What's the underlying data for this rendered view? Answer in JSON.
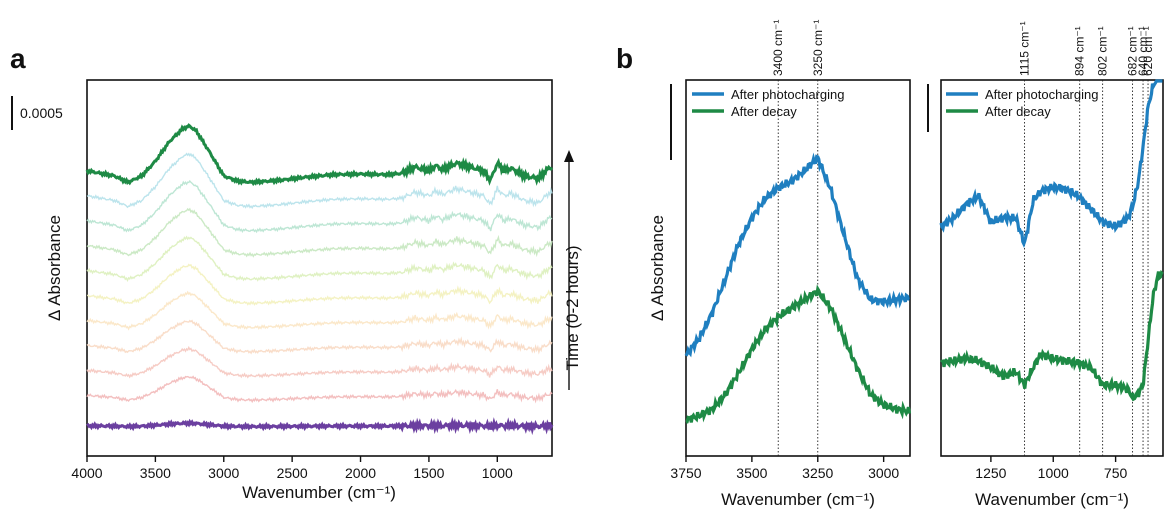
{
  "chart_data": [
    {
      "panel": "a",
      "type": "line",
      "xlabel": "Wavenumber (cm⁻¹)",
      "ylabel": "Δ Absorbance",
      "xlim": [
        4000,
        600
      ],
      "xticks": [
        "4000",
        "3500",
        "3000",
        "2500",
        "2000",
        "1500",
        "1000"
      ],
      "xtick_values": [
        4000,
        3500,
        3000,
        2500,
        2000,
        1500,
        1000
      ],
      "scale_bar_label": "0.0005",
      "arrow_label": "Time (0-2 hours)",
      "y_ticks_shown": false,
      "spectra_count": 11,
      "spectrum_profile": {
        "x": [
          4000,
          3800,
          3700,
          3600,
          3500,
          3400,
          3300,
          3250,
          3200,
          3100,
          3000,
          2900,
          2800,
          2600,
          2400,
          2200,
          2000,
          1800,
          1700,
          1600,
          1500,
          1450,
          1400,
          1300,
          1200,
          1100,
          1050,
          1000,
          950,
          900,
          800,
          700,
          620
        ],
        "y": [
          0.3,
          0.22,
          0.12,
          0.22,
          0.45,
          0.75,
          0.96,
          1.0,
          0.92,
          0.58,
          0.22,
          0.14,
          0.12,
          0.15,
          0.2,
          0.24,
          0.25,
          0.24,
          0.26,
          0.36,
          0.3,
          0.38,
          0.32,
          0.42,
          0.36,
          0.3,
          0.15,
          0.42,
          0.3,
          0.34,
          0.22,
          0.18,
          0.35
        ]
      },
      "series_colors": [
        "#6b3fa0",
        "#f2b8b8",
        "#f5c7bf",
        "#f8d9c3",
        "#fbe6c4",
        "#f3f1bd",
        "#dcefbb",
        "#c5e7bf",
        "#b6e3cf",
        "#b5e1ea",
        "#1e8a45"
      ]
    },
    {
      "panel": "b",
      "type": "line",
      "ylabel": "Δ Absorbance",
      "xlabel": "Wavenumber (cm⁻¹)",
      "legend": [
        "After photocharging",
        "After decay"
      ],
      "legend_position": "top-left",
      "series_colors": [
        "#1f7fc0",
        "#1e8a45"
      ],
      "left_subplot": {
        "xlim": [
          3750,
          2900
        ],
        "xticks": [
          "3750",
          "3500",
          "3250",
          "3000"
        ],
        "xtick_values": [
          3750,
          3500,
          3250,
          3000
        ],
        "peak_lines": [
          3400,
          3250
        ],
        "peak_labels": [
          "3400 cm⁻¹",
          "3250 cm⁻¹"
        ],
        "series": [
          {
            "name": "After photocharging",
            "x": [
              3750,
              3700,
              3650,
              3600,
              3550,
              3500,
              3450,
              3400,
              3350,
              3300,
              3250,
              3200,
              3150,
              3100,
              3050,
              3000,
              2950,
              2900
            ],
            "y": [
              0.3,
              0.38,
              0.5,
              0.66,
              0.82,
              0.94,
              1.03,
              1.08,
              1.11,
              1.16,
              1.22,
              1.07,
              0.86,
              0.66,
              0.56,
              0.55,
              0.56,
              0.57
            ]
          },
          {
            "name": "After decay",
            "x": [
              3750,
              3700,
              3650,
              3600,
              3550,
              3500,
              3450,
              3400,
              3350,
              3300,
              3250,
              3200,
              3150,
              3100,
              3050,
              3000,
              2950,
              2900
            ],
            "y": [
              0.0,
              0.02,
              0.05,
              0.12,
              0.22,
              0.33,
              0.42,
              0.48,
              0.52,
              0.56,
              0.6,
              0.52,
              0.38,
              0.24,
              0.12,
              0.07,
              0.05,
              0.04
            ]
          }
        ]
      },
      "right_subplot": {
        "xlim": [
          1450,
          560
        ],
        "xticks": [
          "1250",
          "1000",
          "750"
        ],
        "xtick_values": [
          1250,
          1000,
          750
        ],
        "peak_lines": [
          1115,
          894,
          802,
          682,
          640,
          620
        ],
        "peak_labels": [
          "1115 cm⁻¹",
          "894 cm⁻¹",
          "802 cm⁻¹",
          "682 cm⁻¹",
          "640 cm⁻¹",
          "620 cm⁻¹"
        ],
        "series": [
          {
            "name": "After photocharging",
            "x": [
              1450,
              1400,
              1350,
              1300,
              1250,
              1200,
              1150,
              1115,
              1080,
              1050,
              1000,
              950,
              900,
              850,
              800,
              750,
              700,
              680,
              660,
              640,
              620,
              600,
              580
            ],
            "y": [
              0.72,
              0.76,
              0.82,
              0.86,
              0.74,
              0.76,
              0.76,
              0.64,
              0.84,
              0.88,
              0.9,
              0.89,
              0.86,
              0.8,
              0.74,
              0.72,
              0.76,
              0.82,
              0.92,
              1.08,
              1.26,
              1.36,
              1.4
            ]
          },
          {
            "name": "After decay",
            "x": [
              1450,
              1400,
              1350,
              1300,
              1250,
              1200,
              1150,
              1115,
              1080,
              1050,
              1000,
              950,
              900,
              850,
              800,
              750,
              700,
              680,
              660,
              640,
              620,
              600,
              580
            ],
            "y": [
              0.1,
              0.11,
              0.12,
              0.11,
              0.08,
              0.04,
              0.06,
              0.0,
              0.08,
              0.14,
              0.12,
              0.11,
              0.1,
              0.08,
              0.0,
              0.0,
              -0.02,
              -0.06,
              -0.04,
              0.0,
              0.2,
              0.4,
              0.5
            ]
          }
        ]
      }
    }
  ]
}
